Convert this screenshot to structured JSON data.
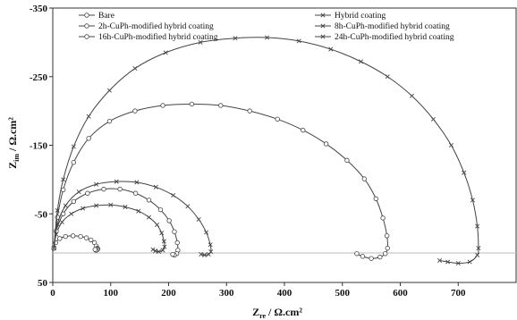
{
  "chart_data": {
    "type": "line",
    "title": "",
    "xlabel": "Z_re / Ω.cm²",
    "ylabel": "Z_im / Ω.cm²",
    "x_ticks": [
      "0",
      "100",
      "200",
      "300",
      "400",
      "500",
      "600",
      "700"
    ],
    "y_ticks": [
      "-350",
      "-250",
      "-150",
      "-50",
      "50"
    ],
    "xlim": [
      0,
      800
    ],
    "ylim": [
      -350,
      50
    ],
    "y_inverted": true,
    "grid": false,
    "legend_placement": "top, two columns",
    "series": [
      {
        "name": "Bare",
        "marker": "circle-open",
        "points": [
          [
            2,
            0
          ],
          [
            5,
            -8
          ],
          [
            12,
            -14
          ],
          [
            22,
            -17
          ],
          [
            35,
            -18
          ],
          [
            48,
            -17
          ],
          [
            58,
            -15
          ],
          [
            66,
            -12
          ],
          [
            72,
            -8
          ],
          [
            75,
            -3
          ],
          [
            77,
            0
          ],
          [
            78,
            1
          ],
          [
            77,
            2
          ],
          [
            75,
            3
          ],
          [
            73,
            2
          ]
        ]
      },
      {
        "name": "Hybrid coating",
        "marker": "x",
        "points": [
          [
            2,
            0
          ],
          [
            6,
            -20
          ],
          [
            16,
            -38
          ],
          [
            32,
            -50
          ],
          [
            52,
            -58
          ],
          [
            75,
            -62
          ],
          [
            100,
            -63
          ],
          [
            125,
            -60
          ],
          [
            148,
            -54
          ],
          [
            166,
            -45
          ],
          [
            180,
            -34
          ],
          [
            188,
            -22
          ],
          [
            192,
            -10
          ],
          [
            193,
            -2
          ],
          [
            190,
            3
          ],
          [
            183,
            5
          ],
          [
            177,
            4
          ],
          [
            173,
            2
          ]
        ]
      },
      {
        "name": "2h-CuPh-modified hybrid coating",
        "marker": "circle-open",
        "points": [
          [
            2,
            0
          ],
          [
            6,
            -25
          ],
          [
            18,
            -50
          ],
          [
            36,
            -68
          ],
          [
            60,
            -80
          ],
          [
            88,
            -86
          ],
          [
            116,
            -86
          ],
          [
            143,
            -80
          ],
          [
            166,
            -70
          ],
          [
            186,
            -56
          ],
          [
            201,
            -40
          ],
          [
            210,
            -24
          ],
          [
            215,
            -8
          ],
          [
            216,
            3
          ],
          [
            214,
            8
          ],
          [
            210,
            10
          ],
          [
            207,
            9
          ]
        ]
      },
      {
        "name": "8h-CuPh-modified hybrid coating",
        "marker": "x",
        "points": [
          [
            2,
            0
          ],
          [
            8,
            -35
          ],
          [
            22,
            -62
          ],
          [
            45,
            -82
          ],
          [
            75,
            -93
          ],
          [
            110,
            -97
          ],
          [
            145,
            -96
          ],
          [
            178,
            -89
          ],
          [
            208,
            -77
          ],
          [
            233,
            -61
          ],
          [
            252,
            -42
          ],
          [
            265,
            -23
          ],
          [
            272,
            -5
          ],
          [
            273,
            5
          ],
          [
            269,
            9
          ],
          [
            262,
            10
          ],
          [
            256,
            9
          ]
        ]
      },
      {
        "name": "16h-CuPh-modified hybrid coating",
        "marker": "circle-open",
        "points": [
          [
            2,
            0
          ],
          [
            8,
            -45
          ],
          [
            18,
            -85
          ],
          [
            36,
            -125
          ],
          [
            62,
            -160
          ],
          [
            98,
            -185
          ],
          [
            142,
            -200
          ],
          [
            190,
            -208
          ],
          [
            240,
            -210
          ],
          [
            290,
            -208
          ],
          [
            340,
            -200
          ],
          [
            388,
            -188
          ],
          [
            432,
            -172
          ],
          [
            472,
            -152
          ],
          [
            508,
            -128
          ],
          [
            538,
            -101
          ],
          [
            558,
            -72
          ],
          [
            570,
            -44
          ],
          [
            577,
            -18
          ],
          [
            578,
            0
          ],
          [
            574,
            8
          ],
          [
            565,
            13
          ],
          [
            550,
            15
          ],
          [
            535,
            12
          ],
          [
            525,
            8
          ]
        ]
      },
      {
        "name": "24h-CuPh-modified hybrid coating",
        "marker": "x",
        "points": [
          [
            2,
            0
          ],
          [
            8,
            -55
          ],
          [
            18,
            -100
          ],
          [
            36,
            -148
          ],
          [
            62,
            -192
          ],
          [
            98,
            -230
          ],
          [
            142,
            -262
          ],
          [
            195,
            -285
          ],
          [
            255,
            -300
          ],
          [
            315,
            -306
          ],
          [
            370,
            -307
          ],
          [
            425,
            -302
          ],
          [
            480,
            -290
          ],
          [
            532,
            -272
          ],
          [
            578,
            -250
          ],
          [
            620,
            -222
          ],
          [
            657,
            -188
          ],
          [
            688,
            -150
          ],
          [
            710,
            -110
          ],
          [
            725,
            -70
          ],
          [
            733,
            -32
          ],
          [
            735,
            0
          ],
          [
            733,
            10
          ],
          [
            720,
            20
          ],
          [
            700,
            22
          ],
          [
            682,
            20
          ],
          [
            668,
            18
          ]
        ]
      }
    ]
  }
}
